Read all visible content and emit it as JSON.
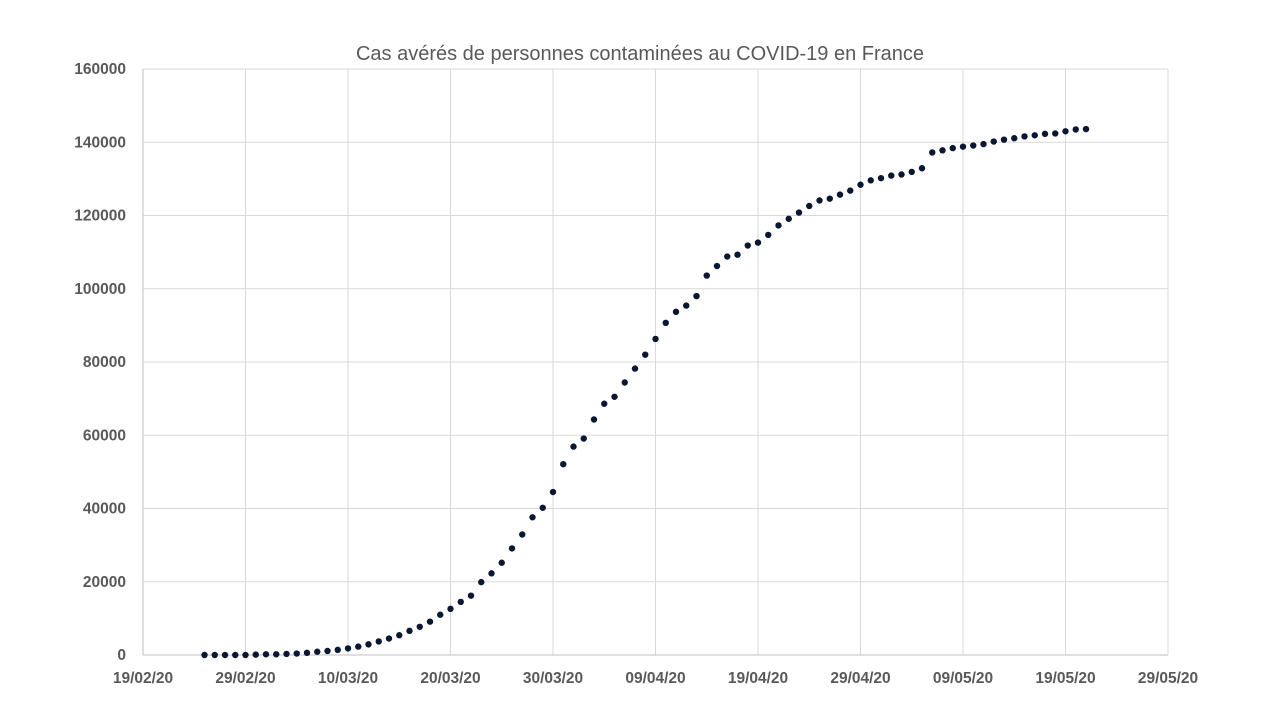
{
  "chart_data": {
    "type": "scatter",
    "title": "Cas avérés de personnes  contaminées au COVID-19 en France",
    "xlabel": "",
    "ylabel": "",
    "xlim": [
      "19/02/20",
      "29/05/20"
    ],
    "ylim": [
      0,
      160000
    ],
    "x_ticks": [
      "19/02/20",
      "29/02/20",
      "10/03/20",
      "20/03/20",
      "30/03/20",
      "09/04/20",
      "19/04/20",
      "29/04/20",
      "09/05/20",
      "19/05/20",
      "29/05/20"
    ],
    "y_ticks": [
      0,
      20000,
      40000,
      60000,
      80000,
      100000,
      120000,
      140000,
      160000
    ],
    "grid": true,
    "legend": "none",
    "marker_color": "#0a1733",
    "series": [
      {
        "x": [
          "25/02/20",
          "26/02/20",
          "27/02/20",
          "28/02/20",
          "29/02/20",
          "01/03/20",
          "02/03/20",
          "03/03/20",
          "04/03/20",
          "05/03/20",
          "06/03/20",
          "07/03/20",
          "08/03/20",
          "09/03/20",
          "10/03/20",
          "11/03/20",
          "12/03/20",
          "13/03/20",
          "14/03/20",
          "15/03/20",
          "16/03/20",
          "17/03/20",
          "18/03/20",
          "19/03/20",
          "20/03/20",
          "21/03/20",
          "22/03/20",
          "23/03/20",
          "24/03/20",
          "25/03/20",
          "26/03/20",
          "27/03/20",
          "28/03/20",
          "29/03/20",
          "30/03/20",
          "31/03/20",
          "01/04/20",
          "02/04/20",
          "03/04/20",
          "04/04/20",
          "05/04/20",
          "06/04/20",
          "07/04/20",
          "08/04/20",
          "09/04/20",
          "10/04/20",
          "11/04/20",
          "12/04/20",
          "13/04/20",
          "14/04/20",
          "15/04/20",
          "16/04/20",
          "17/04/20",
          "18/04/20",
          "19/04/20",
          "20/04/20",
          "21/04/20",
          "22/04/20",
          "23/04/20",
          "24/04/20",
          "25/04/20",
          "26/04/20",
          "27/04/20",
          "28/04/20",
          "29/04/20",
          "30/04/20",
          "01/05/20",
          "02/05/20",
          "03/05/20",
          "04/05/20",
          "05/05/20",
          "06/05/20",
          "07/05/20",
          "08/05/20",
          "09/05/20",
          "10/05/20",
          "11/05/20",
          "12/05/20",
          "13/05/20",
          "14/05/20",
          "15/05/20",
          "16/05/20",
          "17/05/20",
          "18/05/20",
          "19/05/20",
          "20/05/20",
          "21/05/20"
        ],
        "y": [
          0,
          0,
          0,
          0,
          0,
          100,
          200,
          200,
          300,
          400,
          600,
          900,
          1100,
          1400,
          1800,
          2300,
          2900,
          3700,
          4500,
          5400,
          6600,
          7700,
          9100,
          11000,
          12600,
          14500,
          16200,
          19900,
          22300,
          25200,
          29100,
          32900,
          37600,
          40200,
          44500,
          52100,
          56900,
          59100,
          64300,
          68600,
          70500,
          74400,
          78200,
          82000,
          86300,
          90700,
          93700,
          95400,
          98000,
          103600,
          106200,
          108800,
          109300,
          111800,
          112600,
          114700,
          117300,
          119100,
          120800,
          122600,
          124100,
          124600,
          125700,
          126800,
          128400,
          129600,
          130200,
          130900,
          131200,
          131900,
          132900,
          137200,
          137800,
          138400,
          138800,
          139100,
          139500,
          140200,
          140700,
          141100,
          141600,
          141900,
          142300,
          142400,
          143000,
          143500,
          143600
        ]
      }
    ]
  }
}
